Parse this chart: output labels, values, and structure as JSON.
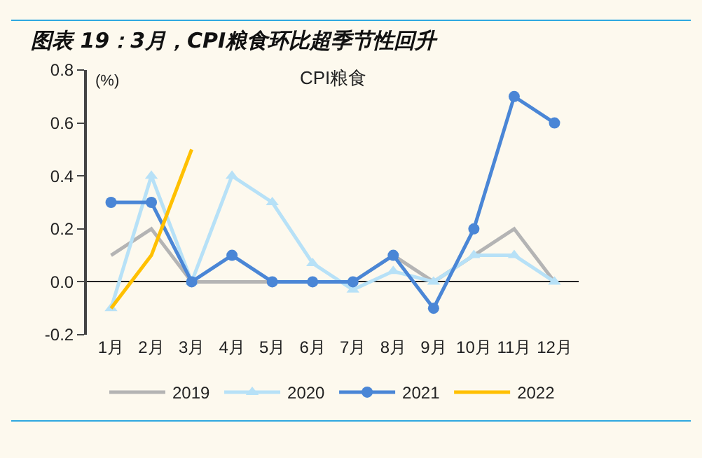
{
  "chart_data": {
    "type": "line",
    "title": "图表 19：3月，CPI粮食环比超季节性回升",
    "subtitle": "CPI粮食",
    "ylabel": "(%)",
    "categories": [
      "1月",
      "2月",
      "3月",
      "4月",
      "5月",
      "6月",
      "7月",
      "8月",
      "9月",
      "10月",
      "11月",
      "12月"
    ],
    "series": [
      {
        "name": "2019",
        "color": "#b4b4b4",
        "marker": "none",
        "values": [
          0.1,
          0.2,
          0,
          0,
          0,
          0,
          0,
          0.1,
          0,
          0.1,
          0.2,
          0
        ]
      },
      {
        "name": "2020",
        "color": "#b7e1f7",
        "marker": "triangle",
        "values": [
          -0.1,
          0.4,
          0,
          0.4,
          0.3,
          0.07,
          -0.03,
          0.04,
          0,
          0.1,
          0.1,
          0
        ]
      },
      {
        "name": "2021",
        "color": "#4a86d6",
        "marker": "circle",
        "values": [
          0.3,
          0.3,
          0,
          0.1,
          0,
          0,
          0,
          0.1,
          -0.1,
          0.2,
          0.7,
          0.6
        ]
      },
      {
        "name": "2022",
        "color": "#ffc000",
        "marker": "none",
        "values": [
          -0.1,
          0.1,
          0.5,
          null,
          null,
          null,
          null,
          null,
          null,
          null,
          null,
          null
        ]
      }
    ],
    "ylim": [
      -0.2,
      0.8
    ],
    "yticks": [
      {
        "value": -0.2,
        "label": "-0.2"
      },
      {
        "value": 0,
        "label": "0.0"
      },
      {
        "value": 0.2,
        "label": "0.2"
      },
      {
        "value": 0.4,
        "label": "0.4"
      },
      {
        "value": 0.6,
        "label": "0.6"
      },
      {
        "value": 0.8,
        "label": "0.8"
      }
    ],
    "legend": "bottom",
    "line_style": "solid"
  }
}
